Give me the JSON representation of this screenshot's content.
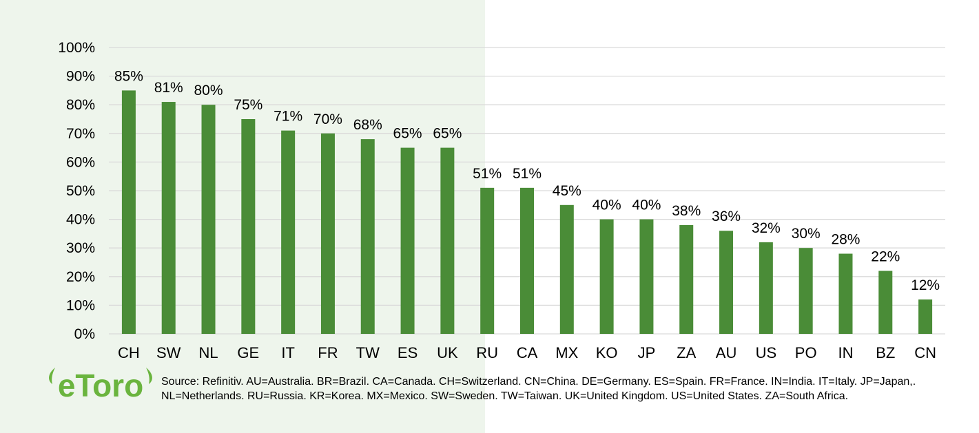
{
  "chart_data": {
    "type": "bar",
    "title": "",
    "xlabel": "",
    "ylabel": "",
    "categories": [
      "CH",
      "SW",
      "NL",
      "GE",
      "IT",
      "FR",
      "TW",
      "ES",
      "UK",
      "RU",
      "CA",
      "MX",
      "KO",
      "JP",
      "ZA",
      "AU",
      "US",
      "PO",
      "IN",
      "BZ",
      "CN"
    ],
    "values": [
      85,
      81,
      80,
      75,
      71,
      70,
      68,
      65,
      65,
      51,
      51,
      45,
      40,
      40,
      38,
      36,
      32,
      30,
      28,
      22,
      12
    ],
    "data_labels": [
      "85%",
      "81%",
      "80%",
      "75%",
      "71%",
      "70%",
      "68%",
      "65%",
      "65%",
      "51%",
      "51%",
      "45%",
      "40%",
      "40%",
      "38%",
      "36%",
      "32%",
      "30%",
      "28%",
      "22%",
      "12%"
    ],
    "y_ticks": [
      0,
      10,
      20,
      30,
      40,
      50,
      60,
      70,
      80,
      90,
      100
    ],
    "y_tick_labels": [
      "0%",
      "10%",
      "20%",
      "30%",
      "40%",
      "50%",
      "60%",
      "70%",
      "80%",
      "90%",
      "100%"
    ],
    "ylim": [
      0,
      100
    ],
    "grid": true,
    "legend": "none"
  },
  "colors": {
    "bar": "#4a8c37",
    "grid": "#d9d9d9",
    "highlight_panel": "#eef5ec",
    "logo": "#6ab43e"
  },
  "footer": {
    "logo_text": "eToro",
    "source_text": "Source: Refinitiv. AU=Australia. BR=Brazil. CA=Canada. CH=Switzerland. CN=China. DE=Germany. ES=Spain. FR=France. IN=India. IT=Italy. JP=Japan,. NL=Netherlands. RU=Russia. KR=Korea. MX=Mexico. SW=Sweden. TW=Taiwan. UK=United Kingdom. US=United States. ZA=South Africa."
  }
}
